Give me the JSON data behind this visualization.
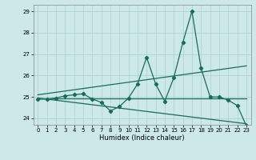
{
  "xlabel": "Humidex (Indice chaleur)",
  "background_color": "#cce8e8",
  "line_color": "#1a6b5a",
  "xlim": [
    -0.5,
    23.5
  ],
  "ylim": [
    23.7,
    29.3
  ],
  "yticks": [
    24,
    25,
    26,
    27,
    28,
    29
  ],
  "xticks": [
    0,
    1,
    2,
    3,
    4,
    5,
    6,
    7,
    8,
    9,
    10,
    11,
    12,
    13,
    14,
    15,
    16,
    17,
    18,
    19,
    20,
    21,
    22,
    23
  ],
  "line1_x": [
    0,
    1,
    2,
    3,
    4,
    5,
    6,
    7,
    8,
    9,
    10,
    11,
    12,
    13,
    14,
    15,
    16,
    17,
    18,
    19,
    20,
    21,
    22,
    23
  ],
  "line1_y": [
    24.9,
    24.9,
    24.95,
    25.05,
    25.1,
    25.15,
    24.9,
    24.75,
    24.35,
    24.55,
    24.95,
    25.6,
    26.85,
    25.6,
    24.8,
    25.9,
    27.55,
    29.0,
    26.35,
    25.0,
    25.0,
    24.85,
    24.6,
    23.65
  ],
  "line2_x": [
    0,
    23
  ],
  "line2_y": [
    24.95,
    24.95
  ],
  "line3_x": [
    0,
    23
  ],
  "line3_y": [
    25.1,
    26.45
  ],
  "line4_x": [
    0,
    23
  ],
  "line4_y": [
    24.95,
    23.75
  ],
  "grid_color": "#aacfcf",
  "xlabel_fontsize": 6,
  "tick_fontsize": 5,
  "linewidth": 0.9,
  "markersize": 2.2
}
